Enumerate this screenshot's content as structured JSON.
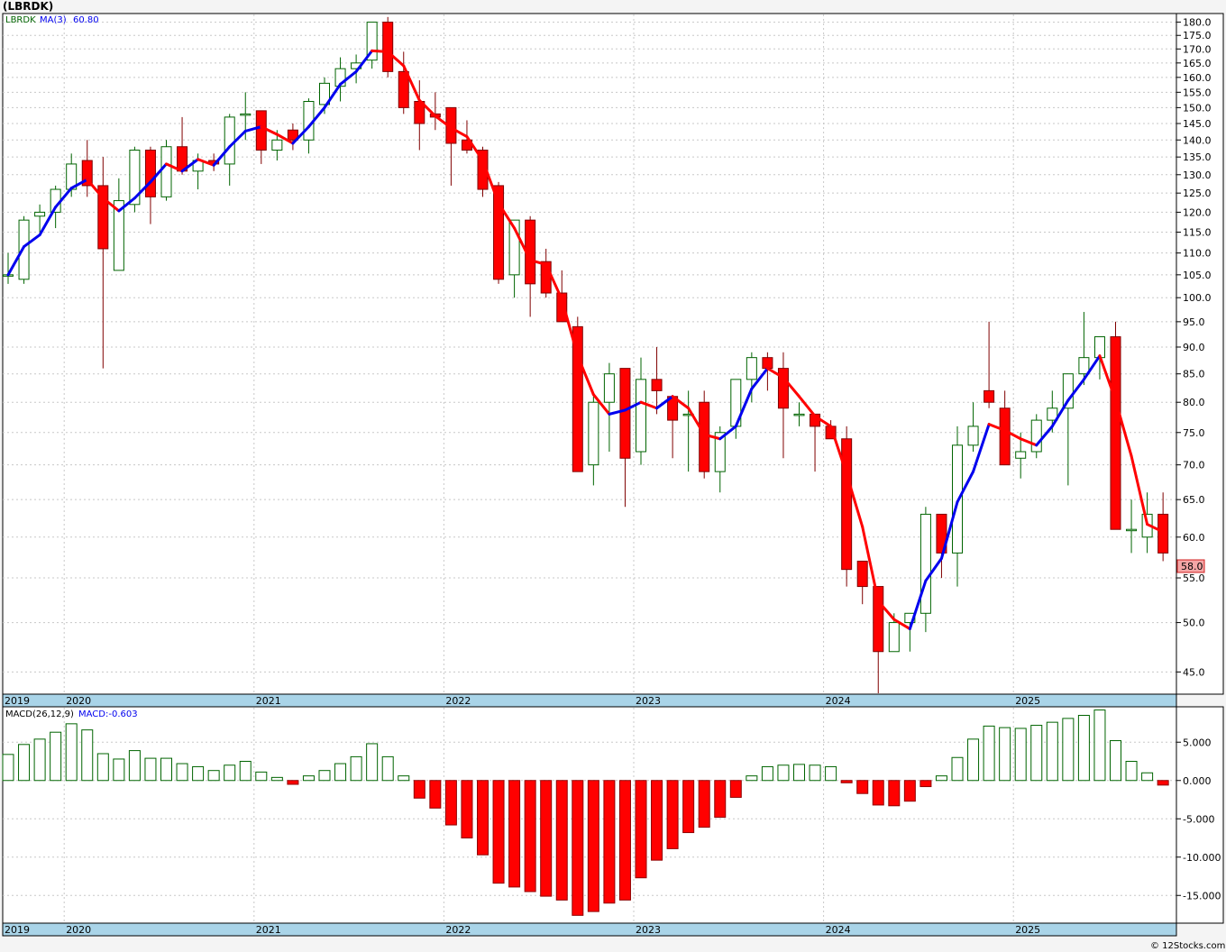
{
  "header": {
    "symbol": "(LBRDK)"
  },
  "price_panel": {
    "legend_symbol": "LBRDK",
    "legend_ma": "MA(3)",
    "legend_ma_value": "60.80",
    "last_price_tag": "58.0"
  },
  "macd_panel": {
    "legend_name": "MACD(26,12,9)",
    "legend_value": "MACD:-0.603"
  },
  "footer": {
    "credit": "© 12Stocks.com"
  },
  "colors": {
    "up_candle_edge": "#006400",
    "down_candle": "#ff0000",
    "ma_rising": "#0000ee",
    "ma_falling": "#ff0000",
    "axis_band": "#a9d4e8",
    "grid": "#c8c8c8"
  },
  "chart_data": [
    {
      "type": "candlestick",
      "title": "(LBRDK)",
      "scale": "log",
      "ylim": [
        43.0,
        183.0
      ],
      "y_ticks": [
        45,
        50,
        55,
        60,
        65,
        70,
        75,
        80,
        85,
        90,
        95,
        100,
        105,
        110,
        115,
        120,
        125,
        130,
        135,
        140,
        145,
        150,
        155,
        160,
        165,
        170,
        175,
        180
      ],
      "x_year_labels": [
        "2019",
        "2020",
        "2021",
        "2022",
        "2023",
        "2024",
        "2025"
      ],
      "x_year_months": [
        0,
        4,
        16,
        28,
        40,
        52,
        64
      ],
      "grid": true,
      "series": [
        {
          "name": "MA(3)",
          "kind": "ma_line"
        }
      ],
      "ohlc": [
        {
          "o": 105,
          "h": 110,
          "l": 103,
          "c": 105
        },
        {
          "o": 104,
          "h": 119,
          "l": 103,
          "c": 118
        },
        {
          "o": 119,
          "h": 122,
          "l": 115,
          "c": 120
        },
        {
          "o": 120,
          "h": 127,
          "l": 116,
          "c": 126
        },
        {
          "o": 126,
          "h": 136,
          "l": 124,
          "c": 133
        },
        {
          "o": 134,
          "h": 140,
          "l": 124,
          "c": 127
        },
        {
          "o": 127,
          "h": 135,
          "l": 86,
          "c": 111
        },
        {
          "o": 106,
          "h": 129,
          "l": 106,
          "c": 123
        },
        {
          "o": 122,
          "h": 138,
          "l": 120,
          "c": 137
        },
        {
          "o": 137,
          "h": 138,
          "l": 117,
          "c": 124
        },
        {
          "o": 124,
          "h": 140,
          "l": 123,
          "c": 138
        },
        {
          "o": 138,
          "h": 147,
          "l": 130,
          "c": 131
        },
        {
          "o": 131,
          "h": 136,
          "l": 126,
          "c": 134
        },
        {
          "o": 134,
          "h": 136,
          "l": 131,
          "c": 133
        },
        {
          "o": 133,
          "h": 148,
          "l": 127,
          "c": 147
        },
        {
          "o": 148,
          "h": 155,
          "l": 140,
          "c": 148
        },
        {
          "o": 149,
          "h": 149,
          "l": 133,
          "c": 137
        },
        {
          "o": 137,
          "h": 143,
          "l": 134,
          "c": 140
        },
        {
          "o": 143,
          "h": 145,
          "l": 137,
          "c": 140
        },
        {
          "o": 140,
          "h": 153,
          "l": 136,
          "c": 152
        },
        {
          "o": 151,
          "h": 160,
          "l": 148,
          "c": 158
        },
        {
          "o": 157,
          "h": 167,
          "l": 152,
          "c": 163
        },
        {
          "o": 163,
          "h": 168,
          "l": 158,
          "c": 165
        },
        {
          "o": 166,
          "h": 180,
          "l": 163,
          "c": 180
        },
        {
          "o": 180,
          "h": 182,
          "l": 160,
          "c": 162
        },
        {
          "o": 162,
          "h": 169,
          "l": 148,
          "c": 150
        },
        {
          "o": 152,
          "h": 159,
          "l": 137,
          "c": 145
        },
        {
          "o": 148,
          "h": 155,
          "l": 143,
          "c": 147
        },
        {
          "o": 150,
          "h": 150,
          "l": 127,
          "c": 139
        },
        {
          "o": 140,
          "h": 146,
          "l": 136,
          "c": 137
        },
        {
          "o": 137,
          "h": 138,
          "l": 124,
          "c": 126
        },
        {
          "o": 127,
          "h": 128,
          "l": 103,
          "c": 104
        },
        {
          "o": 105,
          "h": 118,
          "l": 100,
          "c": 118
        },
        {
          "o": 118,
          "h": 119,
          "l": 96,
          "c": 103
        },
        {
          "o": 108,
          "h": 111,
          "l": 100,
          "c": 101
        },
        {
          "o": 101,
          "h": 106,
          "l": 95,
          "c": 95
        },
        {
          "o": 94,
          "h": 96,
          "l": 69,
          "c": 69
        },
        {
          "o": 70,
          "h": 81,
          "l": 67,
          "c": 80
        },
        {
          "o": 80,
          "h": 87,
          "l": 72,
          "c": 85
        },
        {
          "o": 86,
          "h": 86,
          "l": 64,
          "c": 71
        },
        {
          "o": 72,
          "h": 88,
          "l": 70,
          "c": 84
        },
        {
          "o": 84,
          "h": 90,
          "l": 78,
          "c": 82
        },
        {
          "o": 81,
          "h": 81,
          "l": 71,
          "c": 77
        },
        {
          "o": 78,
          "h": 82,
          "l": 69,
          "c": 78
        },
        {
          "o": 80,
          "h": 82,
          "l": 68,
          "c": 69
        },
        {
          "o": 69,
          "h": 76,
          "l": 66,
          "c": 75
        },
        {
          "o": 76,
          "h": 84,
          "l": 74,
          "c": 84
        },
        {
          "o": 84,
          "h": 89,
          "l": 80,
          "c": 88
        },
        {
          "o": 88,
          "h": 89,
          "l": 82,
          "c": 86
        },
        {
          "o": 86,
          "h": 89,
          "l": 71,
          "c": 79
        },
        {
          "o": 78,
          "h": 80,
          "l": 76,
          "c": 78
        },
        {
          "o": 78,
          "h": 78,
          "l": 69,
          "c": 76
        },
        {
          "o": 76,
          "h": 77,
          "l": 74,
          "c": 74
        },
        {
          "o": 74,
          "h": 76,
          "l": 54,
          "c": 56
        },
        {
          "o": 57,
          "h": 57,
          "l": 52,
          "c": 54
        },
        {
          "o": 54,
          "h": 54,
          "l": 43,
          "c": 47
        },
        {
          "o": 47,
          "h": 51,
          "l": 47,
          "c": 50
        },
        {
          "o": 50,
          "h": 51,
          "l": 47,
          "c": 51
        },
        {
          "o": 51,
          "h": 64,
          "l": 49,
          "c": 63
        },
        {
          "o": 63,
          "h": 63,
          "l": 55,
          "c": 58
        },
        {
          "o": 58,
          "h": 76,
          "l": 54,
          "c": 73
        },
        {
          "o": 73,
          "h": 80,
          "l": 72,
          "c": 76
        },
        {
          "o": 82,
          "h": 95,
          "l": 79,
          "c": 80
        },
        {
          "o": 79,
          "h": 82,
          "l": 70,
          "c": 70
        },
        {
          "o": 71,
          "h": 75,
          "l": 68,
          "c": 72
        },
        {
          "o": 72,
          "h": 78,
          "l": 71,
          "c": 77
        },
        {
          "o": 77,
          "h": 82,
          "l": 75,
          "c": 79
        },
        {
          "o": 79,
          "h": 85,
          "l": 67,
          "c": 85
        },
        {
          "o": 85,
          "h": 97,
          "l": 83,
          "c": 88
        },
        {
          "o": 88,
          "h": 92,
          "l": 84,
          "c": 92
        },
        {
          "o": 92,
          "h": 95,
          "l": 61,
          "c": 61
        },
        {
          "o": 61,
          "h": 65,
          "l": 58,
          "c": 61
        },
        {
          "o": 60,
          "h": 66,
          "l": 58,
          "c": 63
        },
        {
          "o": 63,
          "h": 66,
          "l": 57,
          "c": 58
        }
      ]
    },
    {
      "type": "bar",
      "title": "MACD(26,12,9)",
      "ylim": [
        -18.5,
        9.5
      ],
      "y_ticks": [
        -15,
        -10,
        -5,
        0,
        5
      ],
      "y_tick_labels": [
        "-15.000",
        "-10.000",
        "-5.000",
        "0.000",
        "5.000"
      ],
      "series": [
        {
          "name": "MACD",
          "values": [
            3.4,
            4.7,
            5.4,
            6.3,
            7.4,
            6.6,
            3.5,
            2.8,
            3.9,
            2.9,
            2.9,
            2.2,
            1.8,
            1.3,
            2.0,
            2.5,
            1.1,
            0.4,
            -0.5,
            0.6,
            1.3,
            2.2,
            3.1,
            4.8,
            3.1,
            0.6,
            -2.3,
            -3.6,
            -5.8,
            -7.5,
            -9.7,
            -13.4,
            -13.9,
            -14.5,
            -15.1,
            -15.6,
            -17.6,
            -17.1,
            -16.0,
            -15.6,
            -12.7,
            -10.4,
            -8.9,
            -6.8,
            -6.1,
            -4.8,
            -2.2,
            0.6,
            1.8,
            2.0,
            2.1,
            2.0,
            1.8,
            -0.3,
            -1.7,
            -3.2,
            -3.3,
            -2.7,
            -0.8,
            0.6,
            3.0,
            5.4,
            7.1,
            6.9,
            6.8,
            7.2,
            7.6,
            8.1,
            8.5,
            9.2,
            5.2,
            2.5,
            1.0,
            -0.6
          ]
        }
      ],
      "x_year_labels": [
        "2019",
        "2020",
        "2021",
        "2022",
        "2023",
        "2024",
        "2025"
      ],
      "grid": true
    }
  ]
}
